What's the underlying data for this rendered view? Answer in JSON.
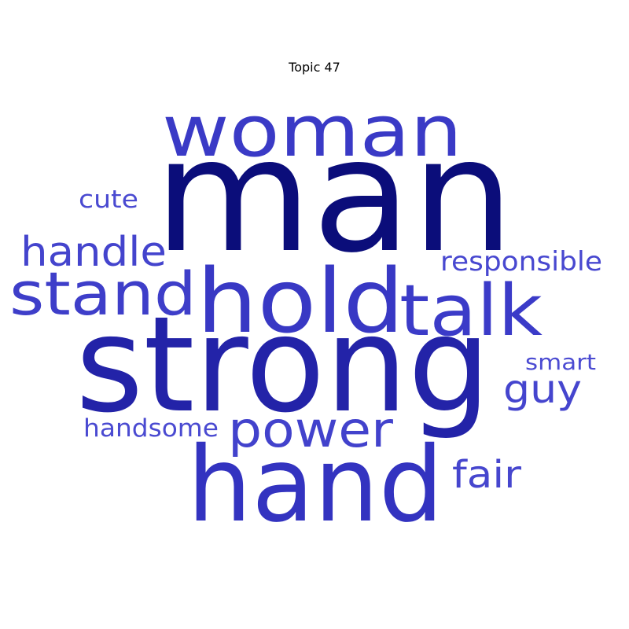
{
  "title": "Topic 47",
  "words": [
    {
      "text": "man",
      "color": "#0b0d7a"
    },
    {
      "text": "strong",
      "color": "#2323a8"
    },
    {
      "text": "hand",
      "color": "#3333c0"
    },
    {
      "text": "hold",
      "color": "#3838c4"
    },
    {
      "text": "woman",
      "color": "#3a3ac6"
    },
    {
      "text": "talk",
      "color": "#3b3bc8"
    },
    {
      "text": "stand",
      "color": "#3e3ec9"
    },
    {
      "text": "power",
      "color": "#4242cc"
    },
    {
      "text": "handle",
      "color": "#4444cd"
    },
    {
      "text": "guy",
      "color": "#4545ce"
    },
    {
      "text": "fair",
      "color": "#4646ce"
    },
    {
      "text": "responsible",
      "color": "#4848d0"
    },
    {
      "text": "handsome",
      "color": "#4a4ad1"
    },
    {
      "text": "cute",
      "color": "#4a4ad1"
    },
    {
      "text": "smart",
      "color": "#4b4bd2"
    }
  ]
}
